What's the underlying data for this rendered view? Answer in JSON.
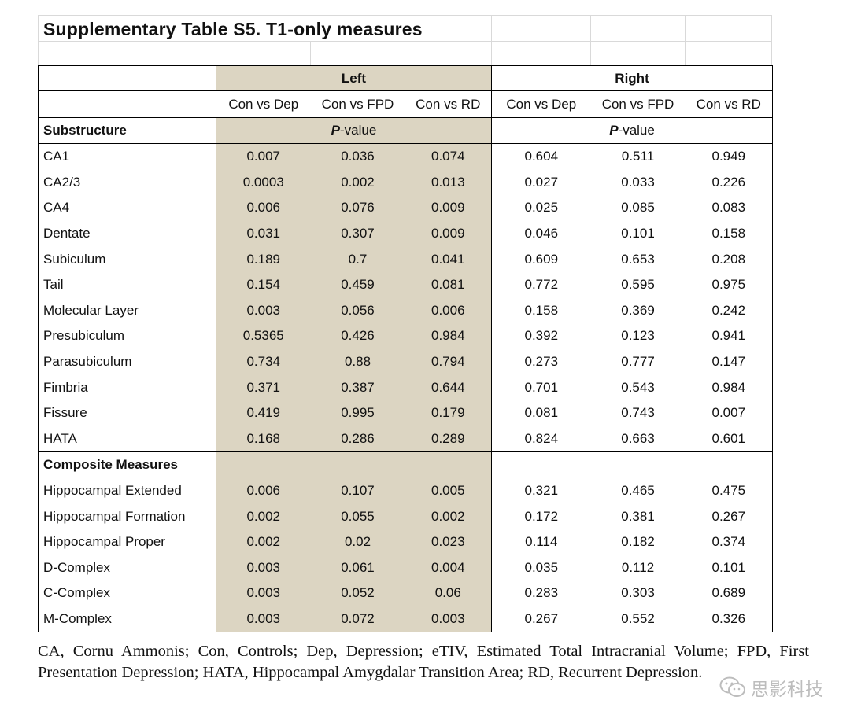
{
  "title": "Supplementary Table S5. T1-only measures",
  "groups": {
    "left": "Left",
    "right": "Right"
  },
  "comparisons": [
    "Con vs Dep",
    "Con vs FPD",
    "Con vs RD",
    "Con vs Dep",
    "Con vs FPD",
    "Con vs RD"
  ],
  "pvalue_label": {
    "p": "P",
    "rest": "-value"
  },
  "sections": [
    {
      "heading": "Substructure",
      "rows": [
        {
          "label": "CA1",
          "values": [
            "0.007",
            "0.036",
            "0.074",
            "0.604",
            "0.511",
            "0.949"
          ]
        },
        {
          "label": "CA2/3",
          "values": [
            "0.0003",
            "0.002",
            "0.013",
            "0.027",
            "0.033",
            "0.226"
          ]
        },
        {
          "label": "CA4",
          "values": [
            "0.006",
            "0.076",
            "0.009",
            "0.025",
            "0.085",
            "0.083"
          ]
        },
        {
          "label": "Dentate",
          "values": [
            "0.031",
            "0.307",
            "0.009",
            "0.046",
            "0.101",
            "0.158"
          ]
        },
        {
          "label": "Subiculum",
          "values": [
            "0.189",
            "0.7",
            "0.041",
            "0.609",
            "0.653",
            "0.208"
          ]
        },
        {
          "label": "Tail",
          "values": [
            "0.154",
            "0.459",
            "0.081",
            "0.772",
            "0.595",
            "0.975"
          ]
        },
        {
          "label": "Molecular Layer",
          "values": [
            "0.003",
            "0.056",
            "0.006",
            "0.158",
            "0.369",
            "0.242"
          ]
        },
        {
          "label": "Presubiculum",
          "values": [
            "0.5365",
            "0.426",
            "0.984",
            "0.392",
            "0.123",
            "0.941"
          ]
        },
        {
          "label": "Parasubiculum",
          "values": [
            "0.734",
            "0.88",
            "0.794",
            "0.273",
            "0.777",
            "0.147"
          ]
        },
        {
          "label": "Fimbria",
          "values": [
            "0.371",
            "0.387",
            "0.644",
            "0.701",
            "0.543",
            "0.984"
          ]
        },
        {
          "label": "Fissure",
          "values": [
            "0.419",
            "0.995",
            "0.179",
            "0.081",
            "0.743",
            "0.007"
          ]
        },
        {
          "label": "HATA",
          "values": [
            "0.168",
            "0.286",
            "0.289",
            "0.824",
            "0.663",
            "0.601"
          ]
        }
      ]
    },
    {
      "heading": "Composite Measures",
      "rows": [
        {
          "label": "Hippocampal Extended",
          "values": [
            "0.006",
            "0.107",
            "0.005",
            "0.321",
            "0.465",
            "0.475"
          ]
        },
        {
          "label": "Hippocampal Formation",
          "values": [
            "0.002",
            "0.055",
            "0.002",
            "0.172",
            "0.381",
            "0.267"
          ]
        },
        {
          "label": "Hippocampal Proper",
          "values": [
            "0.002",
            "0.02",
            "0.023",
            "0.114",
            "0.182",
            "0.374"
          ]
        },
        {
          "label": "D-Complex",
          "values": [
            "0.003",
            "0.061",
            "0.004",
            "0.035",
            "0.112",
            "0.101"
          ]
        },
        {
          "label": "C-Complex",
          "values": [
            "0.003",
            "0.052",
            "0.06",
            "0.283",
            "0.303",
            "0.689"
          ]
        },
        {
          "label": "M-Complex",
          "values": [
            "0.003",
            "0.072",
            "0.003",
            "0.267",
            "0.552",
            "0.326"
          ]
        }
      ]
    }
  ],
  "caption": "CA, Cornu Ammonis; Con, Controls; Dep, Depression; eTIV, Estimated Total Intracranial Volume; FPD, First Presentation Depression; HATA, Hippocampal Amygdalar Transition Area; RD, Recurrent Depression.",
  "watermark": {
    "icon": "wechat-icon",
    "text": "思影科技"
  },
  "colors": {
    "left_shade": "#dcd5c2",
    "watermark": "#bdbdbd"
  }
}
